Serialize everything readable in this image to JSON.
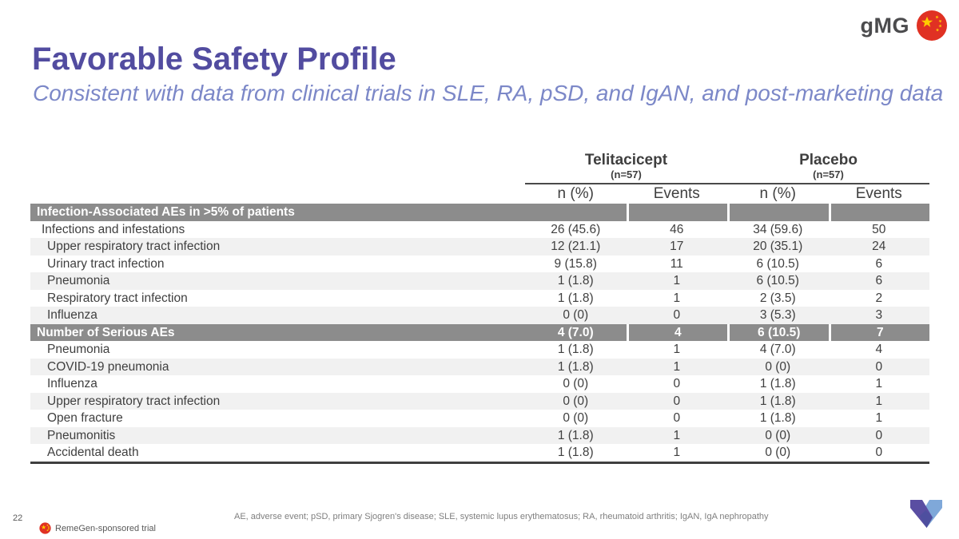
{
  "header": {
    "program_label": "gMG",
    "title": "Favorable Safety Profile",
    "subtitle": "Consistent with data from clinical trials in SLE, RA, pSD, and IgAN, and post-marketing data"
  },
  "table": {
    "groups": [
      {
        "name": "Telitacicept",
        "n_label": "(n=57)"
      },
      {
        "name": "Placebo",
        "n_label": "(n=57)"
      }
    ],
    "col_headers": [
      "n (%)",
      "Events",
      "n (%)",
      "Events"
    ],
    "rows": [
      {
        "label": "Infection-Associated AEs in >5% of patients",
        "type": "section",
        "values": [
          "",
          "",
          "",
          ""
        ]
      },
      {
        "label": "Infections and infestations",
        "type": "soc",
        "values": [
          "26 (45.6)",
          "46",
          "34 (59.6)",
          "50"
        ]
      },
      {
        "label": "Upper respiratory tract infection",
        "type": "item",
        "values": [
          "12 (21.1)",
          "17",
          "20 (35.1)",
          "24"
        ]
      },
      {
        "label": "Urinary tract infection",
        "type": "item",
        "values": [
          "9 (15.8)",
          "11",
          "6 (10.5)",
          "6"
        ]
      },
      {
        "label": "Pneumonia",
        "type": "item",
        "values": [
          "1 (1.8)",
          "1",
          "6 (10.5)",
          "6"
        ]
      },
      {
        "label": "Respiratory tract infection",
        "type": "item",
        "values": [
          "1 (1.8)",
          "1",
          "2 (3.5)",
          "2"
        ]
      },
      {
        "label": "Influenza",
        "type": "item",
        "values": [
          "0 (0)",
          "0",
          "3 (5.3)",
          "3"
        ]
      },
      {
        "label": "Number of Serious AEs",
        "type": "section",
        "values": [
          "4 (7.0)",
          "4",
          "6 (10.5)",
          "7"
        ]
      },
      {
        "label": "Pneumonia",
        "type": "item",
        "values": [
          "1 (1.8)",
          "1",
          "4 (7.0)",
          "4"
        ]
      },
      {
        "label": "COVID-19 pneumonia",
        "type": "item",
        "values": [
          "1 (1.8)",
          "1",
          "0 (0)",
          "0"
        ]
      },
      {
        "label": "Influenza",
        "type": "item",
        "values": [
          "0 (0)",
          "0",
          "1 (1.8)",
          "1"
        ]
      },
      {
        "label": "Upper respiratory tract infection",
        "type": "item",
        "values": [
          "0 (0)",
          "0",
          "1 (1.8)",
          "1"
        ]
      },
      {
        "label": "Open fracture",
        "type": "item",
        "values": [
          "0 (0)",
          "0",
          "1 (1.8)",
          "1"
        ]
      },
      {
        "label": "Pneumonitis",
        "type": "item",
        "values": [
          "1 (1.8)",
          "1",
          "0 (0)",
          "0"
        ]
      },
      {
        "label": "Accidental death",
        "type": "item",
        "values": [
          "1 (1.8)",
          "1",
          "0 (0)",
          "0"
        ]
      }
    ]
  },
  "footer": {
    "page_number": "22",
    "sponsor_note": "RemeGen-sponsored trial",
    "abbreviations": "AE, adverse event; pSD, primary Sjogren's disease; SLE, systemic lupus erythematosus; RA, rheumatoid arthritis; IgAN, IgA nephropathy"
  },
  "colors": {
    "title": "#524ca0",
    "subtitle": "#7c88c8",
    "section_band": "#8c8c8c",
    "row_shade": "#f1f1f1",
    "table_text": "#3f3f3f",
    "flag_red": "#e03123",
    "flag_gold": "#ffcc00",
    "logo_purple": "#5a4ea2",
    "logo_blue": "#7fa8d9"
  }
}
